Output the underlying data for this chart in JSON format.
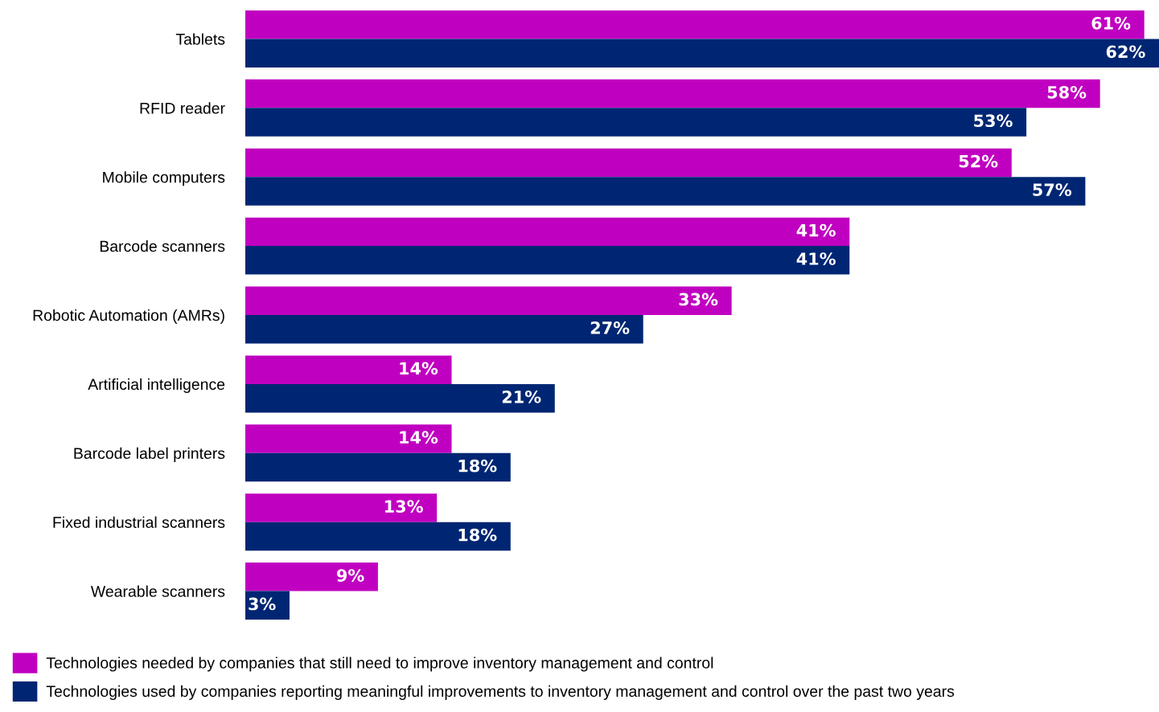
{
  "chart_data": {
    "type": "bar",
    "orientation": "horizontal",
    "categories": [
      "Tablets",
      "RFID reader",
      "Mobile computers",
      "Barcode scanners",
      "Robotic Automation (AMRs)",
      "Artificial intelligence",
      "Barcode label printers",
      "Fixed industrial scanners",
      "Wearable scanners"
    ],
    "series": [
      {
        "name": "Technologies needed by companies that still need to improve inventory management and control",
        "color": "#c000c0",
        "values": [
          61,
          58,
          52,
          41,
          33,
          14,
          14,
          13,
          9
        ],
        "value_labels": [
          "61%",
          "58%",
          "52%",
          "41%",
          "33%",
          "14%",
          "14%",
          "13%",
          "9%"
        ]
      },
      {
        "name": "Technologies used by companies reporting meaningful improvements to inventory management and control over the past two years",
        "color": "#002673",
        "values": [
          62,
          53,
          57,
          41,
          27,
          21,
          18,
          18,
          3
        ],
        "value_labels": [
          "62%",
          "53%",
          "57%",
          "41%",
          "27%",
          "21%",
          "18%",
          "18%",
          "3%"
        ]
      }
    ],
    "legend": "bottom",
    "grid": false,
    "tick_labels": "y"
  }
}
